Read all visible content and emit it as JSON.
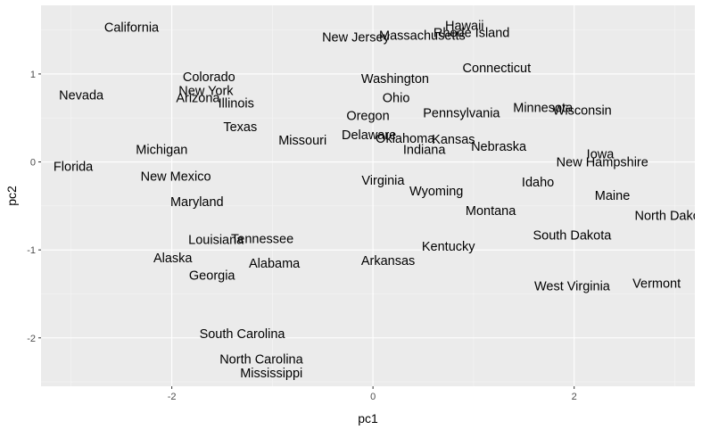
{
  "chart_data": {
    "type": "scatter",
    "mark": "text-label",
    "xlabel": "pc1",
    "ylabel": "pc2",
    "xlim": [
      -3.3,
      3.2
    ],
    "ylim": [
      -2.55,
      1.78
    ],
    "x_ticks": [
      -2,
      0,
      2
    ],
    "y_ticks": [
      -2,
      -1,
      0,
      1
    ],
    "tick_labels_x": [
      "-2",
      "0",
      "2"
    ],
    "tick_labels_y": [
      "-2",
      "-1",
      "0",
      "1"
    ],
    "grid": true,
    "legend": "none",
    "colors": {
      "panel": "#ebebeb",
      "grid_major": "#ffffff",
      "grid_minor": "#f5f5f5",
      "text": "#000000",
      "tick_text": "#4d4d4d"
    },
    "points": [
      {
        "label": "California",
        "x": -2.4,
        "y": 1.53
      },
      {
        "label": "Nevada",
        "x": -2.9,
        "y": 0.76
      },
      {
        "label": "Florida",
        "x": -2.98,
        "y": -0.05
      },
      {
        "label": "Colorado",
        "x": -1.63,
        "y": 0.97
      },
      {
        "label": "New York",
        "x": -1.66,
        "y": 0.81
      },
      {
        "label": "Arizona",
        "x": -1.74,
        "y": 0.73
      },
      {
        "label": "Illinois",
        "x": -1.36,
        "y": 0.67
      },
      {
        "label": "Texas",
        "x": -1.32,
        "y": 0.4
      },
      {
        "label": "Michigan",
        "x": -2.1,
        "y": 0.14
      },
      {
        "label": "New Mexico",
        "x": -1.96,
        "y": -0.16
      },
      {
        "label": "Maryland",
        "x": -1.75,
        "y": -0.45
      },
      {
        "label": "Louisiana",
        "x": -1.56,
        "y": -0.88
      },
      {
        "label": "Tennessee",
        "x": -1.1,
        "y": -0.87
      },
      {
        "label": "Alaska",
        "x": -1.99,
        "y": -1.09
      },
      {
        "label": "Alabama",
        "x": -0.98,
        "y": -1.15
      },
      {
        "label": "Georgia",
        "x": -1.6,
        "y": -1.29
      },
      {
        "label": "South Carolina",
        "x": -1.3,
        "y": -1.95
      },
      {
        "label": "North Carolina",
        "x": -1.11,
        "y": -2.24
      },
      {
        "label": "Mississippi",
        "x": -1.01,
        "y": -2.4
      },
      {
        "label": "New Jersey",
        "x": -0.17,
        "y": 1.42
      },
      {
        "label": "Massachusetts",
        "x": 0.49,
        "y": 1.44
      },
      {
        "label": "Hawaii",
        "x": 0.91,
        "y": 1.55
      },
      {
        "label": "Rhode Island",
        "x": 0.98,
        "y": 1.47
      },
      {
        "label": "Washington",
        "x": 0.22,
        "y": 0.95
      },
      {
        "label": "Ohio",
        "x": 0.23,
        "y": 0.73
      },
      {
        "label": "Oregon",
        "x": -0.05,
        "y": 0.53
      },
      {
        "label": "Connecticut",
        "x": 1.23,
        "y": 1.07
      },
      {
        "label": "Pennsylvania",
        "x": 0.88,
        "y": 0.56
      },
      {
        "label": "Minnesota",
        "x": 1.69,
        "y": 0.62
      },
      {
        "label": "Wisconsin",
        "x": 2.08,
        "y": 0.59
      },
      {
        "label": "Missouri",
        "x": -0.7,
        "y": 0.25
      },
      {
        "label": "Delaware",
        "x": -0.04,
        "y": 0.31
      },
      {
        "label": "Oklahoma",
        "x": 0.32,
        "y": 0.27
      },
      {
        "label": "Kansas",
        "x": 0.8,
        "y": 0.26
      },
      {
        "label": "Indiana",
        "x": 0.51,
        "y": 0.14
      },
      {
        "label": "Nebraska",
        "x": 1.25,
        "y": 0.18
      },
      {
        "label": "Iowa",
        "x": 2.26,
        "y": 0.09
      },
      {
        "label": "New Hampshire",
        "x": 2.28,
        "y": 0.0
      },
      {
        "label": "Virginia",
        "x": 0.1,
        "y": -0.21
      },
      {
        "label": "Wyoming",
        "x": 0.63,
        "y": -0.33
      },
      {
        "label": "Idaho",
        "x": 1.64,
        "y": -0.23
      },
      {
        "label": "Maine",
        "x": 2.38,
        "y": -0.38
      },
      {
        "label": "Montana",
        "x": 1.17,
        "y": -0.55
      },
      {
        "label": "North Dakota",
        "x": 2.98,
        "y": -0.61
      },
      {
        "label": "South Dakota",
        "x": 1.98,
        "y": -0.83
      },
      {
        "label": "Kentucky",
        "x": 0.75,
        "y": -0.96
      },
      {
        "label": "Arkansas",
        "x": 0.15,
        "y": -1.12
      },
      {
        "label": "West Virginia",
        "x": 1.98,
        "y": -1.41
      },
      {
        "label": "Vermont",
        "x": 2.82,
        "y": -1.38
      }
    ]
  }
}
